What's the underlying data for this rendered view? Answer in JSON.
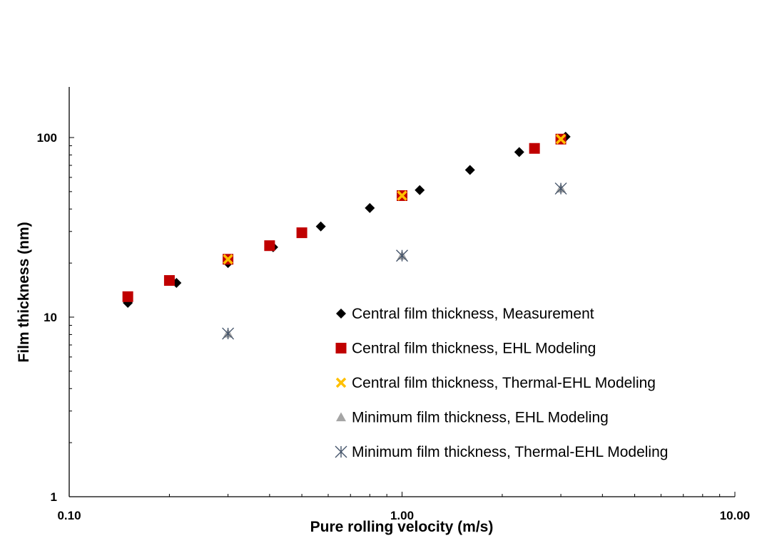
{
  "chart_data": {
    "type": "scatter",
    "title": "",
    "xlabel": "Pure rolling velocity (m/s)",
    "ylabel": "Film thickness (nm)",
    "xscale": "log",
    "yscale": "log",
    "xlim": [
      0.1,
      10
    ],
    "ylim": [
      1,
      200
    ],
    "x_ticks": [
      {
        "value": 0.1,
        "label": "0.10"
      },
      {
        "value": 1,
        "label": "1.00"
      },
      {
        "value": 10,
        "label": "10.00"
      }
    ],
    "y_ticks": [
      {
        "value": 1,
        "label": "1"
      },
      {
        "value": 10,
        "label": "10"
      },
      {
        "value": 100,
        "label": "100"
      }
    ],
    "grid": false,
    "legend_position": "inside-bottom-right",
    "series": [
      {
        "name": "Central film thickness, Measurement",
        "marker": "diamond",
        "color": "#000000",
        "points": [
          {
            "x": 0.15,
            "y": 12
          },
          {
            "x": 0.21,
            "y": 15.5
          },
          {
            "x": 0.3,
            "y": 20
          },
          {
            "x": 0.41,
            "y": 24.5
          },
          {
            "x": 0.57,
            "y": 32
          },
          {
            "x": 0.8,
            "y": 40.5
          },
          {
            "x": 1.13,
            "y": 51
          },
          {
            "x": 1.6,
            "y": 66
          },
          {
            "x": 2.25,
            "y": 83
          },
          {
            "x": 3.1,
            "y": 101
          }
        ]
      },
      {
        "name": "Central film thickness, EHL Modeling",
        "marker": "square",
        "color": "#c00000",
        "points": [
          {
            "x": 0.15,
            "y": 13
          },
          {
            "x": 0.2,
            "y": 16
          },
          {
            "x": 0.3,
            "y": 21
          },
          {
            "x": 0.4,
            "y": 25
          },
          {
            "x": 0.5,
            "y": 29.5
          },
          {
            "x": 1.0,
            "y": 47.5
          },
          {
            "x": 2.5,
            "y": 87
          },
          {
            "x": 3.0,
            "y": 98
          }
        ]
      },
      {
        "name": "Central film thickness, Thermal-EHL Modeling",
        "marker": "x",
        "color": "#ffc000",
        "points": [
          {
            "x": 0.3,
            "y": 21
          },
          {
            "x": 1.0,
            "y": 47.5
          },
          {
            "x": 3.0,
            "y": 98
          }
        ]
      },
      {
        "name": "Minimum film thickness, EHL Modeling",
        "marker": "triangle",
        "color": "#a5a5a5",
        "points": [
          {
            "x": 0.3,
            "y": 8.1
          },
          {
            "x": 1.0,
            "y": 22
          },
          {
            "x": 3.0,
            "y": 52
          }
        ]
      },
      {
        "name": "Minimum film thickness, Thermal-EHL Modeling",
        "marker": "asterisk",
        "color": "#44546a",
        "points": [
          {
            "x": 0.3,
            "y": 8.1
          },
          {
            "x": 1.0,
            "y": 22
          },
          {
            "x": 3.0,
            "y": 52
          }
        ]
      }
    ]
  }
}
